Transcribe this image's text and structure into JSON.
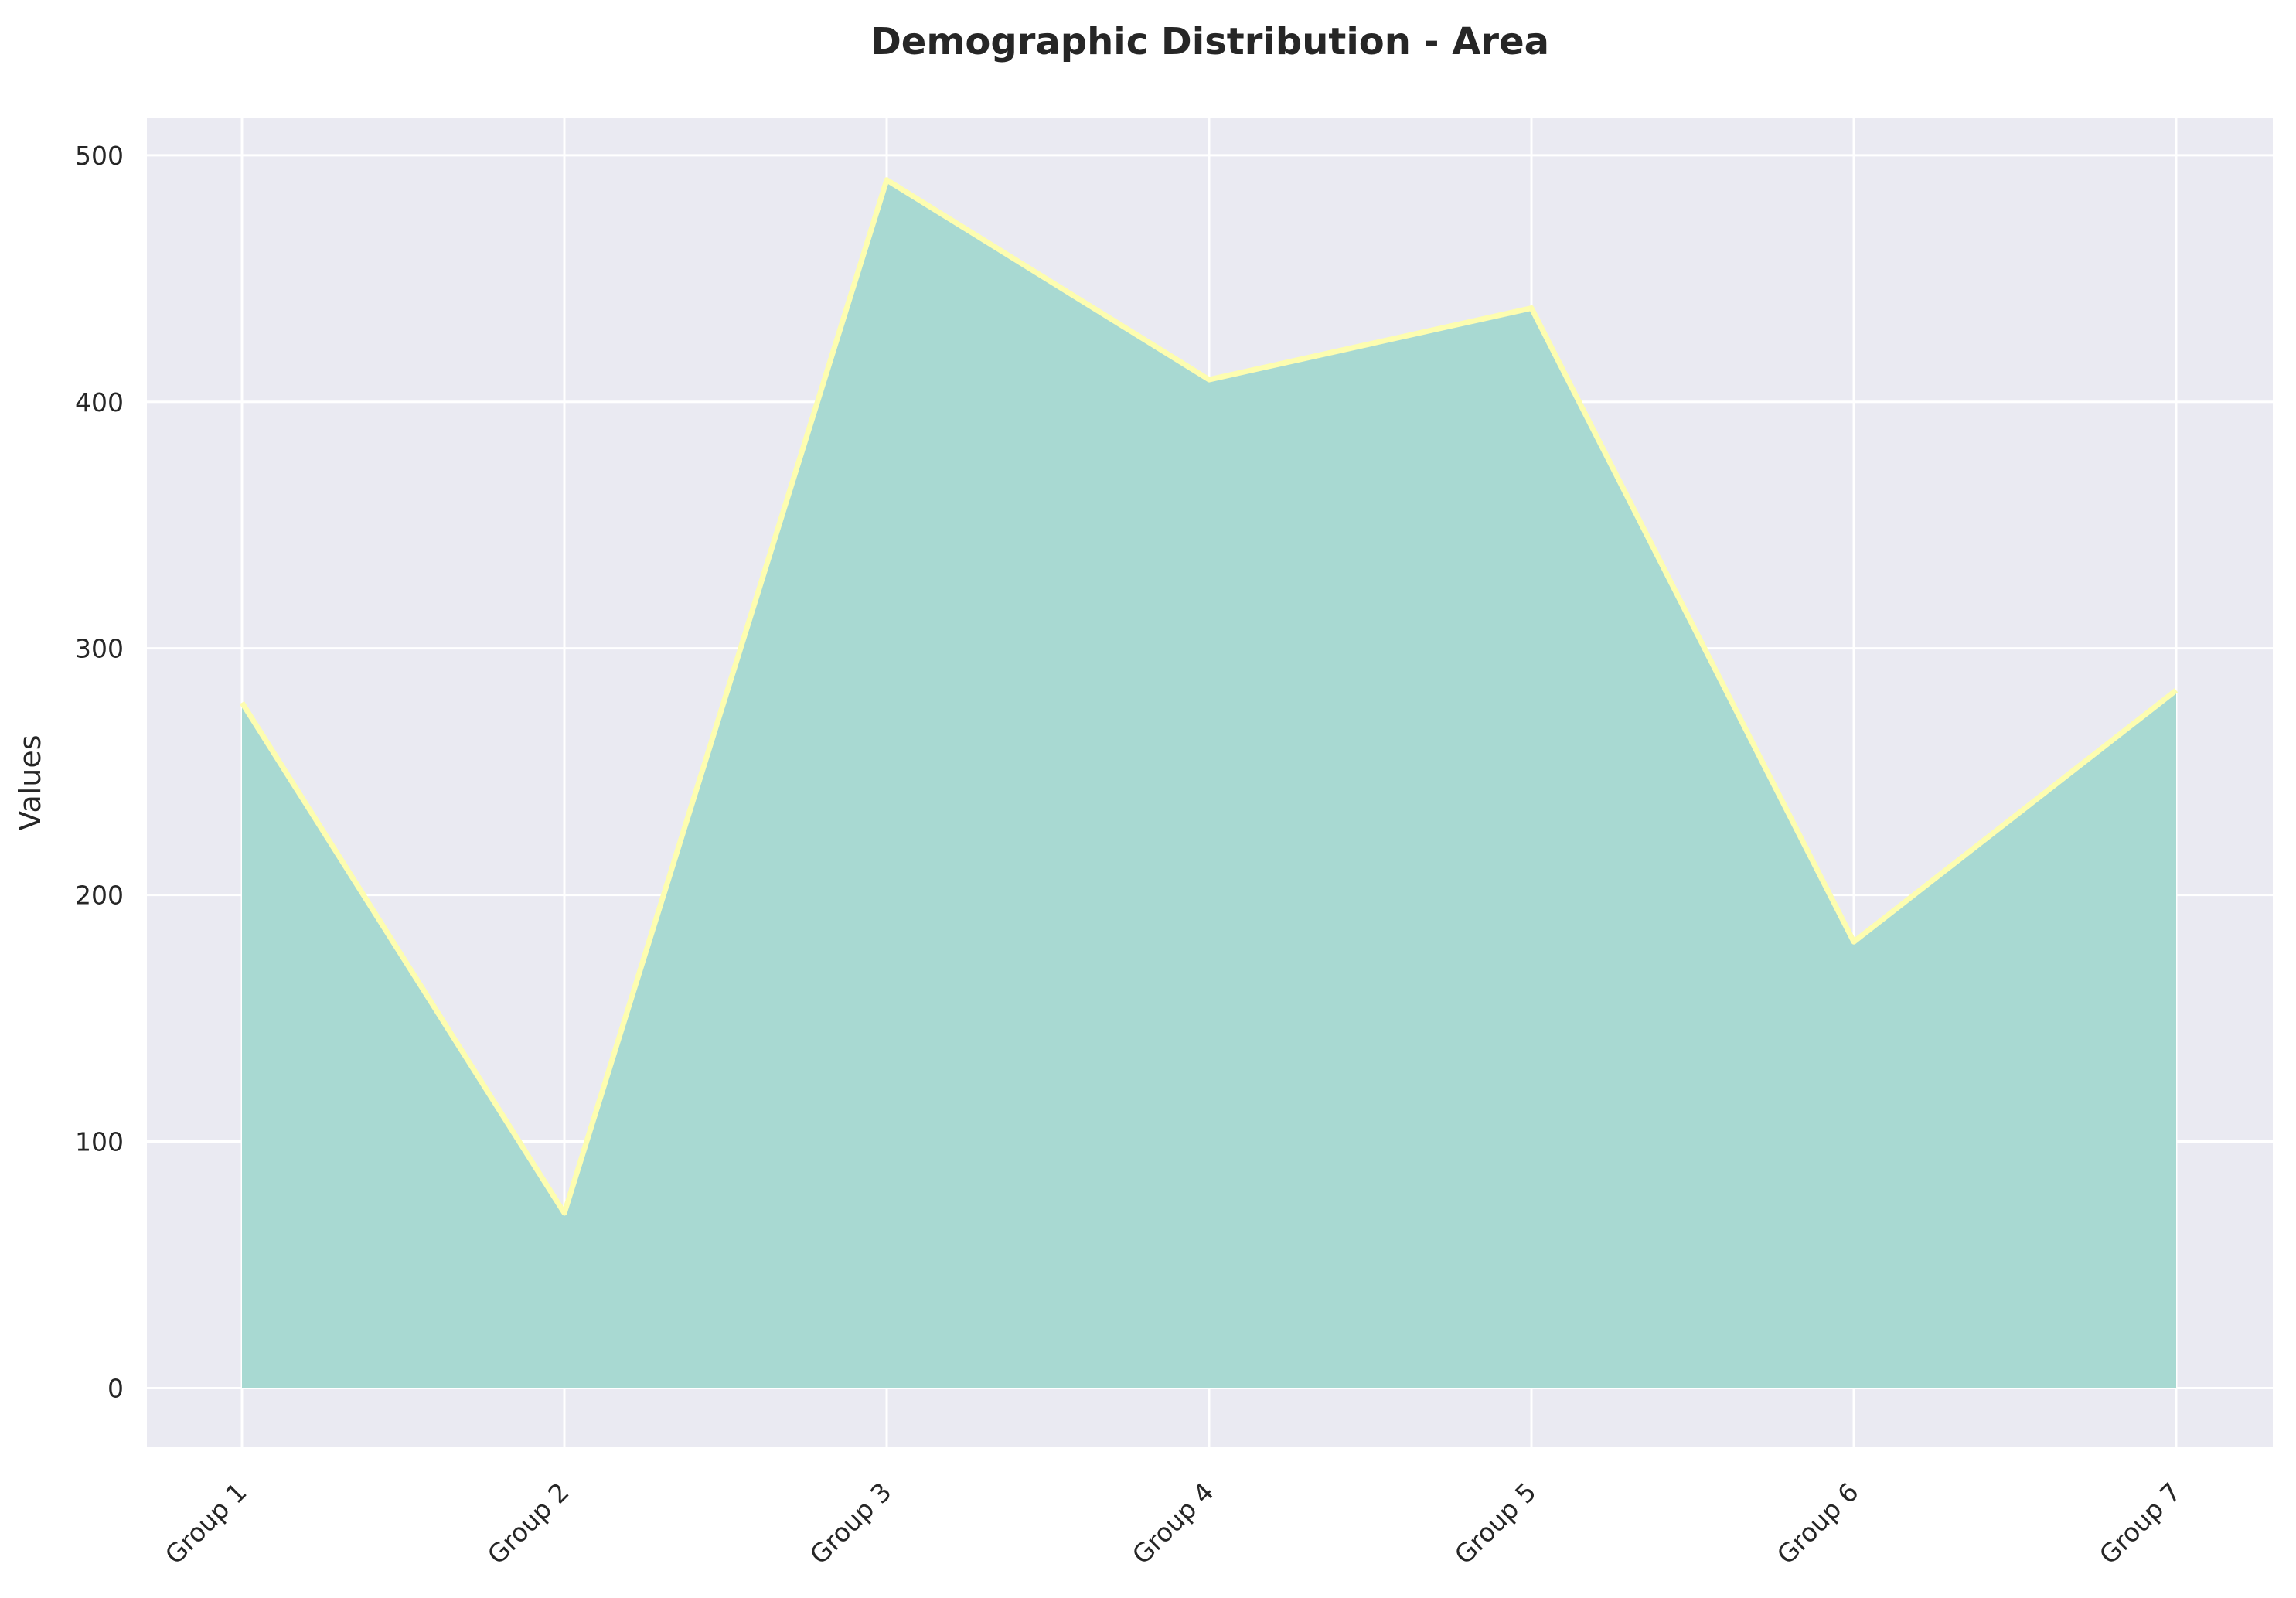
{
  "chart_data": {
    "type": "area",
    "title": "Demographic Distribution - Area",
    "xlabel": "",
    "ylabel": "Values",
    "categories": [
      "Group 1",
      "Group 2",
      "Group 3",
      "Group 4",
      "Group 5",
      "Group 6",
      "Group 7"
    ],
    "series": [
      {
        "values": [
          278,
          71,
          490,
          409,
          438,
          181,
          283
        ],
        "fill_color": "#a8d9d2",
        "line_color": "#fdfdb0"
      }
    ],
    "ylim": [
      -24,
      515
    ],
    "yticks": [
      0,
      100,
      200,
      300,
      400,
      500
    ],
    "background_color": "#eaeaf2",
    "grid": true,
    "legend": "none"
  }
}
